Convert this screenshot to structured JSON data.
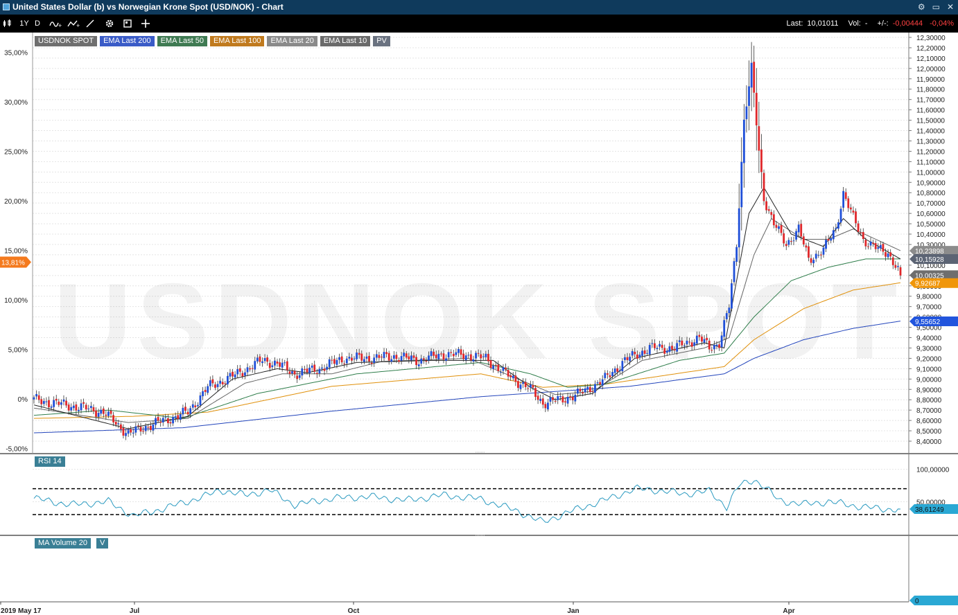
{
  "window": {
    "title": "United States Dollar (b) vs Norwegian Krone Spot (USD/NOK) - Chart",
    "controls": [
      "⚙",
      "▭",
      "✕"
    ]
  },
  "toolbar": {
    "period": "1Y",
    "interval": "D",
    "last_label": "Last:",
    "last_value": "10,01011",
    "vol_label": "Vol:",
    "vol_value": "-",
    "change_label": "+/-:",
    "change_value": "-0,00444",
    "change_pct": "-0,04%"
  },
  "legend": [
    {
      "label": "USDNOK SPOT",
      "color": "#6e6e6e"
    },
    {
      "label": "EMA Last 200",
      "color": "#3a5bc7"
    },
    {
      "label": "EMA Last 50",
      "color": "#3f7a52"
    },
    {
      "label": "EMA Last 100",
      "color": "#c07a1e"
    },
    {
      "label": "EMA Last 20",
      "color": "#8a8a8a"
    },
    {
      "label": "EMA Last 10",
      "color": "#6a6a6a"
    },
    {
      "label": "PV",
      "color": "#6a7280"
    }
  ],
  "watermark": "USDNOK SPOT",
  "rsi_label": "RSI 14",
  "volume_label": "MA Volume 20",
  "volume_v_label": "V",
  "chart_data": {
    "type": "candlestick",
    "x_labels": [
      "2019 May 17",
      "Jul",
      "Oct",
      "Jan",
      "Apr"
    ],
    "y_right_ticks": [
      "12,30000",
      "12,20000",
      "12,10000",
      "12,00000",
      "11,90000",
      "11,80000",
      "11,70000",
      "11,60000",
      "11,50000",
      "11,40000",
      "11,30000",
      "11,20000",
      "11,10000",
      "11,00000",
      "10,90000",
      "10,80000",
      "10,70000",
      "10,60000",
      "10,50000",
      "10,40000",
      "10,30000",
      "10,20000",
      "10,10000",
      "10,00000",
      "9,90000",
      "9,80000",
      "9,70000",
      "9,60000",
      "9,50000",
      "9,40000",
      "9,30000",
      "9,20000",
      "9,10000",
      "9,00000",
      "8,90000",
      "8,80000",
      "8,70000",
      "8,60000",
      "8,50000",
      "8,40000"
    ],
    "y_right_range": [
      8.4,
      12.3
    ],
    "y_left_ticks": [
      "35,00%",
      "30,00%",
      "25,00%",
      "20,00%",
      "15,00%",
      "10,00%",
      "5,00%",
      "0%",
      "-5,00%"
    ],
    "y_left_range": [
      -5,
      35
    ],
    "left_marker": "13,81%",
    "price_markers": [
      {
        "label": "10,23898",
        "value": 10.239,
        "color": "#8c8c8c"
      },
      {
        "label": "10,15928",
        "value": 10.159,
        "color": "#5c6474"
      },
      {
        "label": "10,00325",
        "value": 10.003,
        "color": "#6e6e6e"
      },
      {
        "label": "9,92687",
        "value": 9.927,
        "color": "#f0960a"
      },
      {
        "label": "9,55652",
        "value": 9.557,
        "color": "#2255dd"
      }
    ],
    "close_anchors": [
      [
        0,
        8.8
      ],
      [
        10,
        8.76
      ],
      [
        20,
        8.72
      ],
      [
        28,
        8.68
      ],
      [
        38,
        8.47
      ],
      [
        45,
        8.54
      ],
      [
        55,
        8.62
      ],
      [
        62,
        8.68
      ],
      [
        70,
        8.92
      ],
      [
        82,
        9.05
      ],
      [
        92,
        9.18
      ],
      [
        98,
        9.15
      ],
      [
        105,
        9.05
      ],
      [
        115,
        9.1
      ],
      [
        125,
        9.2
      ],
      [
        135,
        9.2
      ],
      [
        145,
        9.22
      ],
      [
        155,
        9.18
      ],
      [
        165,
        9.24
      ],
      [
        175,
        9.23
      ],
      [
        182,
        9.2
      ],
      [
        190,
        9.05
      ],
      [
        200,
        8.9
      ],
      [
        205,
        8.77
      ],
      [
        212,
        8.8
      ],
      [
        220,
        8.86
      ],
      [
        230,
        9.0
      ],
      [
        238,
        9.18
      ],
      [
        248,
        9.3
      ],
      [
        258,
        9.3
      ],
      [
        268,
        9.4
      ],
      [
        272,
        9.3
      ],
      [
        276,
        9.35
      ],
      [
        280,
        9.7
      ],
      [
        283,
        10.3
      ],
      [
        286,
        11.5
      ],
      [
        289,
        12.0
      ],
      [
        292,
        11.2
      ],
      [
        294,
        10.75
      ],
      [
        298,
        10.5
      ],
      [
        303,
        10.3
      ],
      [
        308,
        10.45
      ],
      [
        312,
        10.15
      ],
      [
        318,
        10.25
      ],
      [
        323,
        10.45
      ],
      [
        326,
        10.8
      ],
      [
        330,
        10.55
      ],
      [
        334,
        10.35
      ],
      [
        340,
        10.25
      ],
      [
        344,
        10.22
      ],
      [
        347,
        10.1
      ],
      [
        349,
        10.0
      ]
    ],
    "ema_series": [
      {
        "name": "EMA Last 200",
        "color": "#2244bb",
        "anchors": [
          [
            0,
            8.48
          ],
          [
            60,
            8.53
          ],
          [
            120,
            8.69
          ],
          [
            180,
            8.83
          ],
          [
            240,
            8.93
          ],
          [
            278,
            9.05
          ],
          [
            290,
            9.2
          ],
          [
            310,
            9.38
          ],
          [
            330,
            9.49
          ],
          [
            349,
            9.56
          ]
        ]
      },
      {
        "name": "EMA Last 100",
        "color": "#e0900a",
        "anchors": [
          [
            0,
            8.62
          ],
          [
            40,
            8.64
          ],
          [
            70,
            8.68
          ],
          [
            120,
            8.93
          ],
          [
            180,
            9.05
          ],
          [
            205,
            8.92
          ],
          [
            230,
            8.95
          ],
          [
            278,
            9.12
          ],
          [
            290,
            9.38
          ],
          [
            310,
            9.68
          ],
          [
            330,
            9.86
          ],
          [
            349,
            9.93
          ]
        ]
      },
      {
        "name": "EMA Last 50",
        "color": "#2e7d4a",
        "anchors": [
          [
            0,
            8.65
          ],
          [
            30,
            8.7
          ],
          [
            60,
            8.62
          ],
          [
            90,
            8.86
          ],
          [
            130,
            9.05
          ],
          [
            180,
            9.16
          ],
          [
            200,
            9.05
          ],
          [
            215,
            8.92
          ],
          [
            230,
            8.95
          ],
          [
            260,
            9.18
          ],
          [
            278,
            9.25
          ],
          [
            290,
            9.6
          ],
          [
            305,
            9.95
          ],
          [
            320,
            10.08
          ],
          [
            335,
            10.16
          ],
          [
            349,
            10.16
          ]
        ]
      },
      {
        "name": "EMA Last 20",
        "color": "#666666",
        "anchors": [
          [
            0,
            8.72
          ],
          [
            38,
            8.58
          ],
          [
            62,
            8.62
          ],
          [
            85,
            8.96
          ],
          [
            100,
            9.05
          ],
          [
            120,
            9.05
          ],
          [
            140,
            9.17
          ],
          [
            175,
            9.2
          ],
          [
            195,
            9.0
          ],
          [
            210,
            8.85
          ],
          [
            225,
            8.88
          ],
          [
            245,
            9.18
          ],
          [
            270,
            9.3
          ],
          [
            280,
            9.4
          ],
          [
            290,
            10.2
          ],
          [
            297,
            10.55
          ],
          [
            310,
            10.35
          ],
          [
            320,
            10.35
          ],
          [
            330,
            10.45
          ],
          [
            349,
            10.24
          ]
        ]
      },
      {
        "name": "EMA Last 10",
        "color": "#222222",
        "anchors": [
          [
            0,
            8.75
          ],
          [
            38,
            8.52
          ],
          [
            62,
            8.64
          ],
          [
            80,
            9.0
          ],
          [
            98,
            9.1
          ],
          [
            110,
            9.06
          ],
          [
            130,
            9.16
          ],
          [
            160,
            9.18
          ],
          [
            185,
            9.18
          ],
          [
            200,
            8.92
          ],
          [
            210,
            8.8
          ],
          [
            225,
            8.86
          ],
          [
            242,
            9.2
          ],
          [
            270,
            9.35
          ],
          [
            278,
            9.3
          ],
          [
            288,
            10.6
          ],
          [
            294,
            10.85
          ],
          [
            305,
            10.4
          ],
          [
            318,
            10.28
          ],
          [
            326,
            10.55
          ],
          [
            335,
            10.35
          ],
          [
            349,
            10.16
          ]
        ]
      }
    ],
    "rsi": {
      "range": [
        0,
        120
      ],
      "ticks": [
        "100,00000",
        "50,00000"
      ],
      "tick_values": [
        100,
        50
      ],
      "upper": 70,
      "lower": 30,
      "last_label": "38,61249",
      "last_value": 38.6,
      "anchors": [
        [
          0,
          55
        ],
        [
          15,
          45
        ],
        [
          30,
          50
        ],
        [
          40,
          28
        ],
        [
          48,
          35
        ],
        [
          60,
          48
        ],
        [
          70,
          60
        ],
        [
          75,
          68
        ],
        [
          85,
          60
        ],
        [
          95,
          68
        ],
        [
          105,
          45
        ],
        [
          120,
          55
        ],
        [
          135,
          58
        ],
        [
          150,
          52
        ],
        [
          165,
          60
        ],
        [
          180,
          54
        ],
        [
          195,
          35
        ],
        [
          205,
          18
        ],
        [
          210,
          26
        ],
        [
          220,
          40
        ],
        [
          232,
          55
        ],
        [
          242,
          70
        ],
        [
          250,
          68
        ],
        [
          262,
          62
        ],
        [
          272,
          66
        ],
        [
          279,
          42
        ],
        [
          284,
          75
        ],
        [
          290,
          84
        ],
        [
          294,
          74
        ],
        [
          300,
          52
        ],
        [
          310,
          46
        ],
        [
          320,
          50
        ],
        [
          330,
          44
        ],
        [
          340,
          39
        ],
        [
          349,
          38
        ]
      ]
    },
    "volume": {
      "last_label": "0",
      "last_value": 0
    }
  }
}
